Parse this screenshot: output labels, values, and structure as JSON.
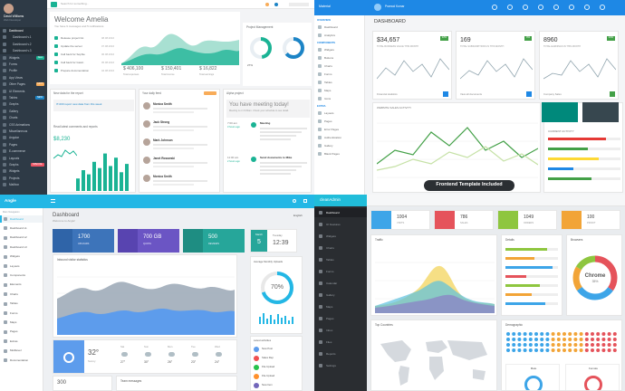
{
  "q1": {
    "search": "Search for something...",
    "user_name": "David Williams",
    "user_role": "Web Developer",
    "welcome": "Welcome Amelia",
    "welcome_sub": "You have 9 messages and 5 notifications",
    "nav": [
      "Dashboard",
      "Dashboard v.1",
      "Dashboard v.2",
      "Dashboard v.3",
      "Widgets",
      "Forms",
      "Profile",
      "App Views",
      "Other Pages",
      "UI Elements",
      "Tables",
      "Graphs",
      "Gallery",
      "Charts",
      "CSS Animations",
      "Miscellaneous",
      "Angular",
      "Pages",
      "E-commerce",
      "Layouts",
      "Graphs",
      "Widgets",
      "Projects",
      "Mailbox"
    ],
    "badges": [
      "New",
      "HOT",
      "NEW",
      "SPECIAL"
    ],
    "tasks": [
      {
        "l": "Release project list",
        "d": "08.08.2016"
      },
      {
        "l": "Update the server",
        "d": "07.08.2016"
      },
      {
        "l": "Call back for Sophie",
        "d": "06.08.2016"
      },
      {
        "l": "Call back for Gavin",
        "d": "05.08.2016"
      },
      {
        "l": "Prepare documentation",
        "d": "04.08.2016"
      }
    ],
    "stats": [
      {
        "v": "$ 406,100",
        "l": "Total expenses"
      },
      {
        "v": "$ 150,401",
        "l": "Total income"
      },
      {
        "v": "$ 16,822",
        "l": "Total earnings"
      }
    ],
    "percent": "27%",
    "project_title": "Project Management",
    "new_title": "New data for the report",
    "new_text": "IT-000 report new data from this week",
    "latest": "Read latest comments and reports",
    "big": "$8,230",
    "daily": "Your daily feed",
    "feed": [
      "Monica Smith",
      "Jack Strong",
      "Mark Johnson",
      "Janet Rosowski",
      "Monica Smith"
    ],
    "alpha": "Alpha project",
    "meeting": "You have meeting today!",
    "meeting_sub": "Meeting is on 6:00am. Check your schedule to see detail.",
    "timeline": [
      {
        "time": "7:00 am",
        "label": "Meeting",
        "h": "3 hours ago"
      },
      {
        "time": "11:00 am",
        "label": "Send documents to Mike",
        "h": "2 hours ago"
      }
    ]
  },
  "q2": {
    "title": "DASHBOARD",
    "nav_heads": [
      "OVERVIEW",
      "COMPONENTS",
      "EXTRA"
    ],
    "nav": [
      "Dashboard",
      "Analytics",
      "Widgets",
      "Buttons",
      "Charts",
      "Forms",
      "Tables",
      "Maps",
      "Icons",
      "Layouts",
      "Pages",
      "Error Pages",
      "Authentication",
      "Gallery",
      "Blank Pages"
    ],
    "kpis": [
      {
        "v": "$34,657",
        "l": "TOTAL BUSINESS VALUE THIS MONTH",
        "b": "12%"
      },
      {
        "v": "169",
        "l": "TOTAL SUBSCRIPTIONS IN THIS MONTH",
        "b": "8%"
      },
      {
        "v": "8960",
        "l": "TOTAL EARNINGS IN THIS MONTH",
        "b": "24%"
      }
    ],
    "links": [
      "Financial statistics",
      "View all documents",
      "Company Sales"
    ],
    "chart_title": "WEBSITE SALES ACTIVITY",
    "progress_title": "CURRENT ACTIVITY",
    "progress": [
      0.8,
      0.55,
      0.7,
      0.35,
      0.6
    ],
    "bubble": "Frontend Template Included",
    "brand": "Material",
    "profile": "Pramod Kumar"
  },
  "q3": {
    "brand": "Angle",
    "section": "Main Navigation",
    "nav": [
      "Dashboard",
      "Dashboard v1",
      "Dashboard v2",
      "Dashboard v3",
      "Widgets",
      "Layouts",
      "Components",
      "Elements",
      "Charts",
      "Tables",
      "Forms",
      "Maps",
      "Pages",
      "Extras",
      "Multilevel",
      "Documentation"
    ],
    "title": "Dashboard",
    "subtitle": "Welcome to Angle!",
    "lang": "English",
    "tiles": [
      {
        "v": "1700",
        "l": "UPLOADS",
        "c": "#3d74ba",
        "c2": "#2f64a8"
      },
      {
        "v": "700 GB",
        "l": "QUOTA",
        "c": "#6b55c4",
        "c2": "#5844b0"
      },
      {
        "v": "500",
        "l": "REVIEWS",
        "c": "#26a69a",
        "c2": "#1e8d82"
      }
    ],
    "date_month": "March",
    "date_day": "5",
    "date_weekday": "Tuesday",
    "date_time": "12:39",
    "chart_title": "Inbound visitor statistics",
    "usage_title": "Average Monthly Uploads",
    "usage": "70%",
    "usage_value": 0.7,
    "activity_title": "Latest activities",
    "activities": [
      "New Post",
      "Sales Rep",
      "File Upload",
      "File Upload",
      "New Item"
    ],
    "weather": "32°",
    "weather_city": "Sunny",
    "forecast": [
      "Sat",
      "Sun",
      "Mon",
      "Tue",
      "Wed"
    ],
    "forecast_t": [
      "27°",
      "30°",
      "26°",
      "23°",
      "24°"
    ],
    "count": "300",
    "team": "Team messages"
  },
  "q4": {
    "brand": "cleanAdmin",
    "nav": [
      "Dashboard",
      "UI Features",
      "Widgets",
      "Charts",
      "Tables",
      "Forms",
      "Calendar",
      "Gallery",
      "Maps",
      "Pages",
      "Inbox",
      "Files",
      "Reports",
      "Settings"
    ],
    "widgets": [
      {
        "v": "1004",
        "l": "VISITS",
        "c": "#3da5e8"
      },
      {
        "v": "786",
        "l": "SALES",
        "c": "#e5535b"
      },
      {
        "v": "1049",
        "l": "ORDERS",
        "c": "#8ec63f"
      },
      {
        "v": "100",
        "l": "PROFIT",
        "c": "#f2a437"
      }
    ],
    "traffic": "Traffic",
    "details": "Details",
    "browsers": "Browsers",
    "chrome": "Chrome",
    "chrome_pct": "35%",
    "countries": "Top Countries",
    "demographic": "Demographic",
    "male": "Male",
    "female": "Female",
    "bars": [
      0.8,
      0.55,
      0.9,
      0.4,
      0.65,
      0.5,
      0.75
    ]
  }
}
